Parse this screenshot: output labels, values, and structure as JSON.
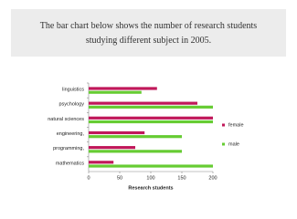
{
  "chart_data": {
    "type": "bar",
    "orientation": "horizontal",
    "title": "The bar chart below shows the number of research students studying different subject in 2005.",
    "categories": [
      "linguistics",
      "psychology",
      "natural sciences",
      "engineering,",
      "programming,",
      "mathematics"
    ],
    "series": [
      {
        "name": "female",
        "color": "#c0185a",
        "values": [
          110,
          175,
          200,
          90,
          75,
          40
        ]
      },
      {
        "name": "male",
        "color": "#66cc33",
        "values": [
          85,
          200,
          200,
          150,
          150,
          200
        ]
      }
    ],
    "xlabel": "Research students",
    "xlim": [
      0,
      200
    ],
    "xticks": [
      0,
      50,
      100,
      150,
      200
    ],
    "grid": false,
    "legend": "right"
  }
}
